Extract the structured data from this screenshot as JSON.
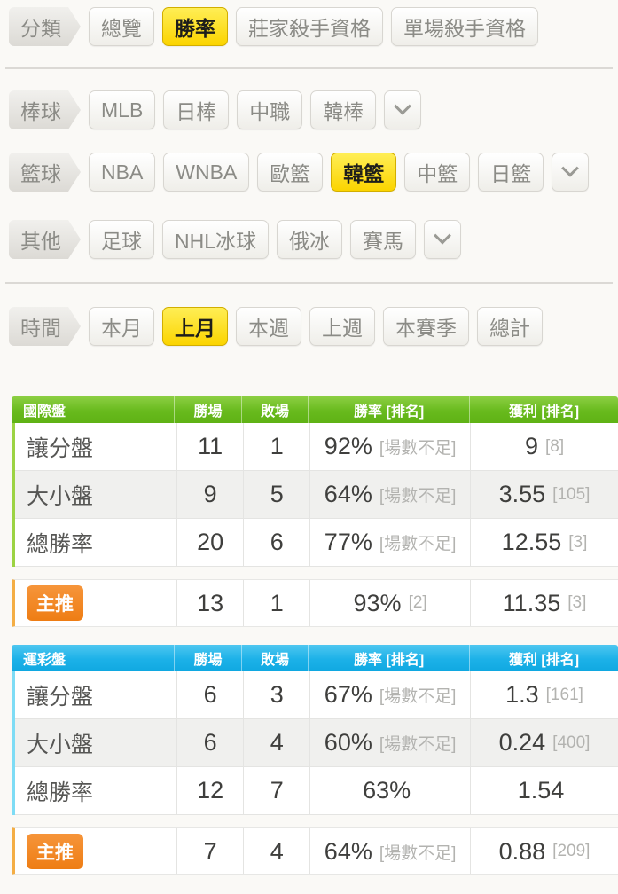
{
  "nav": {
    "category": {
      "label": "分類",
      "items": [
        {
          "label": "總覽",
          "active": false
        },
        {
          "label": "勝率",
          "active": true
        },
        {
          "label": "莊家殺手資格",
          "active": false
        },
        {
          "label": "單場殺手資格",
          "active": false
        }
      ]
    },
    "baseball": {
      "label": "棒球",
      "items": [
        {
          "label": "MLB"
        },
        {
          "label": "日棒"
        },
        {
          "label": "中職"
        },
        {
          "label": "韓棒"
        }
      ],
      "more_icon": "chevron-down-icon"
    },
    "basketball": {
      "label": "籃球",
      "items": [
        {
          "label": "NBA"
        },
        {
          "label": "WNBA"
        },
        {
          "label": "歐籃"
        },
        {
          "label": "韓籃",
          "active": true
        },
        {
          "label": "中籃"
        },
        {
          "label": "日籃"
        }
      ],
      "more_icon": "chevron-down-icon"
    },
    "other": {
      "label": "其他",
      "items": [
        {
          "label": "足球"
        },
        {
          "label": "NHL冰球"
        },
        {
          "label": "俄冰"
        },
        {
          "label": "賽馬"
        }
      ],
      "more_icon": "chevron-down-icon"
    },
    "time": {
      "label": "時間",
      "items": [
        {
          "label": "本月"
        },
        {
          "label": "上月",
          "active": true
        },
        {
          "label": "本週"
        },
        {
          "label": "上週"
        },
        {
          "label": "本賽季"
        },
        {
          "label": "總計"
        }
      ]
    }
  },
  "tables": [
    {
      "title": "國際盤",
      "theme": "green",
      "columns": [
        "勝場",
        "敗場",
        "勝率 [排名]",
        "獲利 [排名]"
      ],
      "rows": [
        {
          "label": "讓分盤",
          "wins": "11",
          "losses": "1",
          "rate": "92%",
          "rate_note": "[場數不足]",
          "profit": "9",
          "profit_note": "[8]"
        },
        {
          "label": "大小盤",
          "wins": "9",
          "losses": "5",
          "rate": "64%",
          "rate_note": "[場數不足]",
          "profit": "3.55",
          "profit_note": "[105]"
        },
        {
          "label": "總勝率",
          "wins": "20",
          "losses": "6",
          "rate": "77%",
          "rate_note": "[場數不足]",
          "profit": "12.55",
          "profit_note": "[3]"
        }
      ],
      "featured": {
        "badge": "主推",
        "wins": "13",
        "losses": "1",
        "rate": "93%",
        "rate_note": "[2]",
        "profit": "11.35",
        "profit_note": "[3]"
      }
    },
    {
      "title": "運彩盤",
      "theme": "blue",
      "columns": [
        "勝場",
        "敗場",
        "勝率 [排名]",
        "獲利 [排名]"
      ],
      "rows": [
        {
          "label": "讓分盤",
          "wins": "6",
          "losses": "3",
          "rate": "67%",
          "rate_note": "[場數不足]",
          "profit": "1.3",
          "profit_note": "[161]"
        },
        {
          "label": "大小盤",
          "wins": "6",
          "losses": "4",
          "rate": "60%",
          "rate_note": "[場數不足]",
          "profit": "0.24",
          "profit_note": "[400]"
        },
        {
          "label": "總勝率",
          "wins": "12",
          "losses": "7",
          "rate": "63%",
          "rate_note": "",
          "profit": "1.54",
          "profit_note": ""
        }
      ],
      "featured": {
        "badge": "主推",
        "wins": "7",
        "losses": "4",
        "rate": "64%",
        "rate_note": "[場數不足]",
        "profit": "0.88",
        "profit_note": "[209]"
      }
    }
  ],
  "colors": {
    "green_header": "#6abe27",
    "blue_header": "#1fb4e9",
    "green_accent": "#9cd343",
    "cyan_accent": "#7edcf5",
    "orange_accent": "#f4ae45",
    "active_yellow": "#fbd400",
    "badge_orange": "#ee7d14"
  }
}
